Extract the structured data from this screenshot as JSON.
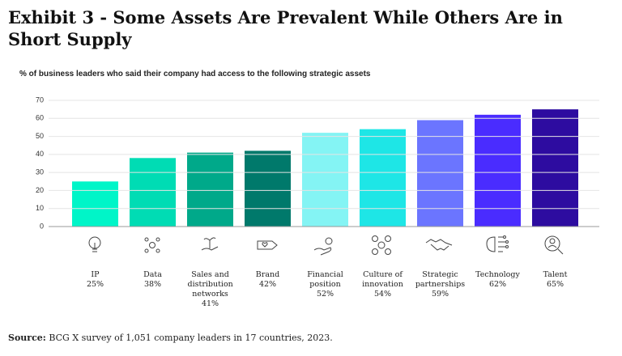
{
  "chart_data": {
    "type": "bar",
    "title": "Exhibit 3 - Some Assets Are Prevalent While Others Are in Short Supply",
    "subtitle": "% of business leaders who said their company had access to the following strategic assets",
    "categories": [
      "IP",
      "Data",
      "Sales and distribution networks",
      "Brand",
      "Financial position",
      "Culture of innovation",
      "Strategic partnerships",
      "Technology",
      "Talent"
    ],
    "values": [
      25,
      38,
      41,
      42,
      52,
      54,
      59,
      62,
      65
    ],
    "value_labels": [
      "25%",
      "38%",
      "41%",
      "42%",
      "52%",
      "54%",
      "59%",
      "62%",
      "65%"
    ],
    "colors": [
      "#00f5c8",
      "#00dcb4",
      "#00a98a",
      "#00796b",
      "#84f4f4",
      "#1ee6e6",
      "#6b75ff",
      "#4a2cff",
      "#2d0ca0"
    ],
    "ylim": [
      0,
      70
    ],
    "yticks": [
      0,
      10,
      20,
      30,
      40,
      50,
      60,
      70
    ],
    "grid": true,
    "source_label": "Source:",
    "source": "BCG X survey of 1,051 company leaders in 17 countries, 2023."
  }
}
